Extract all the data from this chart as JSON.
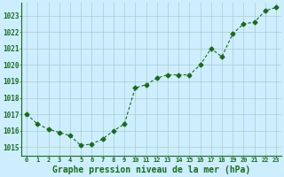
{
  "x": [
    0,
    1,
    2,
    3,
    4,
    5,
    6,
    7,
    8,
    9,
    10,
    11,
    12,
    13,
    14,
    15,
    16,
    17,
    18,
    19,
    20,
    21,
    22,
    23
  ],
  "y": [
    1017.0,
    1016.4,
    1016.1,
    1015.9,
    1015.7,
    1015.1,
    1015.2,
    1015.5,
    1016.0,
    1016.4,
    1018.6,
    1018.8,
    1019.2,
    1019.4,
    1019.4,
    1019.4,
    1020.0,
    1021.0,
    1020.5,
    1021.9,
    1022.5,
    1022.6,
    1023.3,
    1023.5
  ],
  "line_color": "#1a6b1a",
  "marker": "D",
  "marker_size": 2.5,
  "bg_color": "#cceeff",
  "grid_color": "#aacccc",
  "xlabel": "Graphe pression niveau de la mer (hPa)",
  "xlabel_fontsize": 7,
  "ylabel_ticks": [
    1015,
    1016,
    1017,
    1018,
    1019,
    1020,
    1021,
    1022,
    1023
  ],
  "ylim": [
    1014.5,
    1023.8
  ],
  "xlim": [
    -0.5,
    23.5
  ],
  "ytick_fontsize": 5.5,
  "xtick_fontsize": 5.0,
  "axis_color": "#1a6b1a"
}
